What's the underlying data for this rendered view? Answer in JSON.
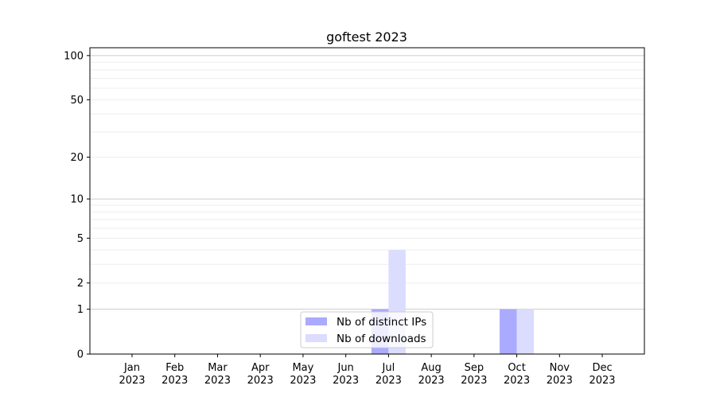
{
  "chart_data": {
    "type": "bar",
    "title": "goftest 2023",
    "xlabel": "",
    "ylabel": "",
    "yscale": "log(1+y)",
    "ylim": [
      0,
      113
    ],
    "y_ticks": [
      0,
      1,
      2,
      5,
      10,
      20,
      50,
      100
    ],
    "y_tick_labels": [
      "0",
      "1",
      "2",
      "5",
      "10",
      "20",
      "50",
      "100"
    ],
    "grid": true,
    "legend_position": "bottom-center",
    "categories": [
      "Jan\n2023",
      "Feb\n2023",
      "Mar\n2023",
      "Apr\n2023",
      "May\n2023",
      "Jun\n2023",
      "Jul\n2023",
      "Aug\n2023",
      "Sep\n2023",
      "Oct\n2023",
      "Nov\n2023",
      "Dec\n2023"
    ],
    "category_months": [
      "Jan",
      "Feb",
      "Mar",
      "Apr",
      "May",
      "Jun",
      "Jul",
      "Aug",
      "Sep",
      "Oct",
      "Nov",
      "Dec"
    ],
    "category_year": "2023",
    "series": [
      {
        "name": "Nb of distinct IPs",
        "color": "#aaaaff",
        "values": [
          0,
          0,
          0,
          0,
          0,
          0,
          1,
          0,
          0,
          1,
          0,
          0
        ]
      },
      {
        "name": "Nb of downloads",
        "color": "#dcdcff",
        "values": [
          0,
          0,
          0,
          0,
          0,
          0,
          4,
          0,
          0,
          1,
          0,
          0
        ]
      }
    ]
  }
}
